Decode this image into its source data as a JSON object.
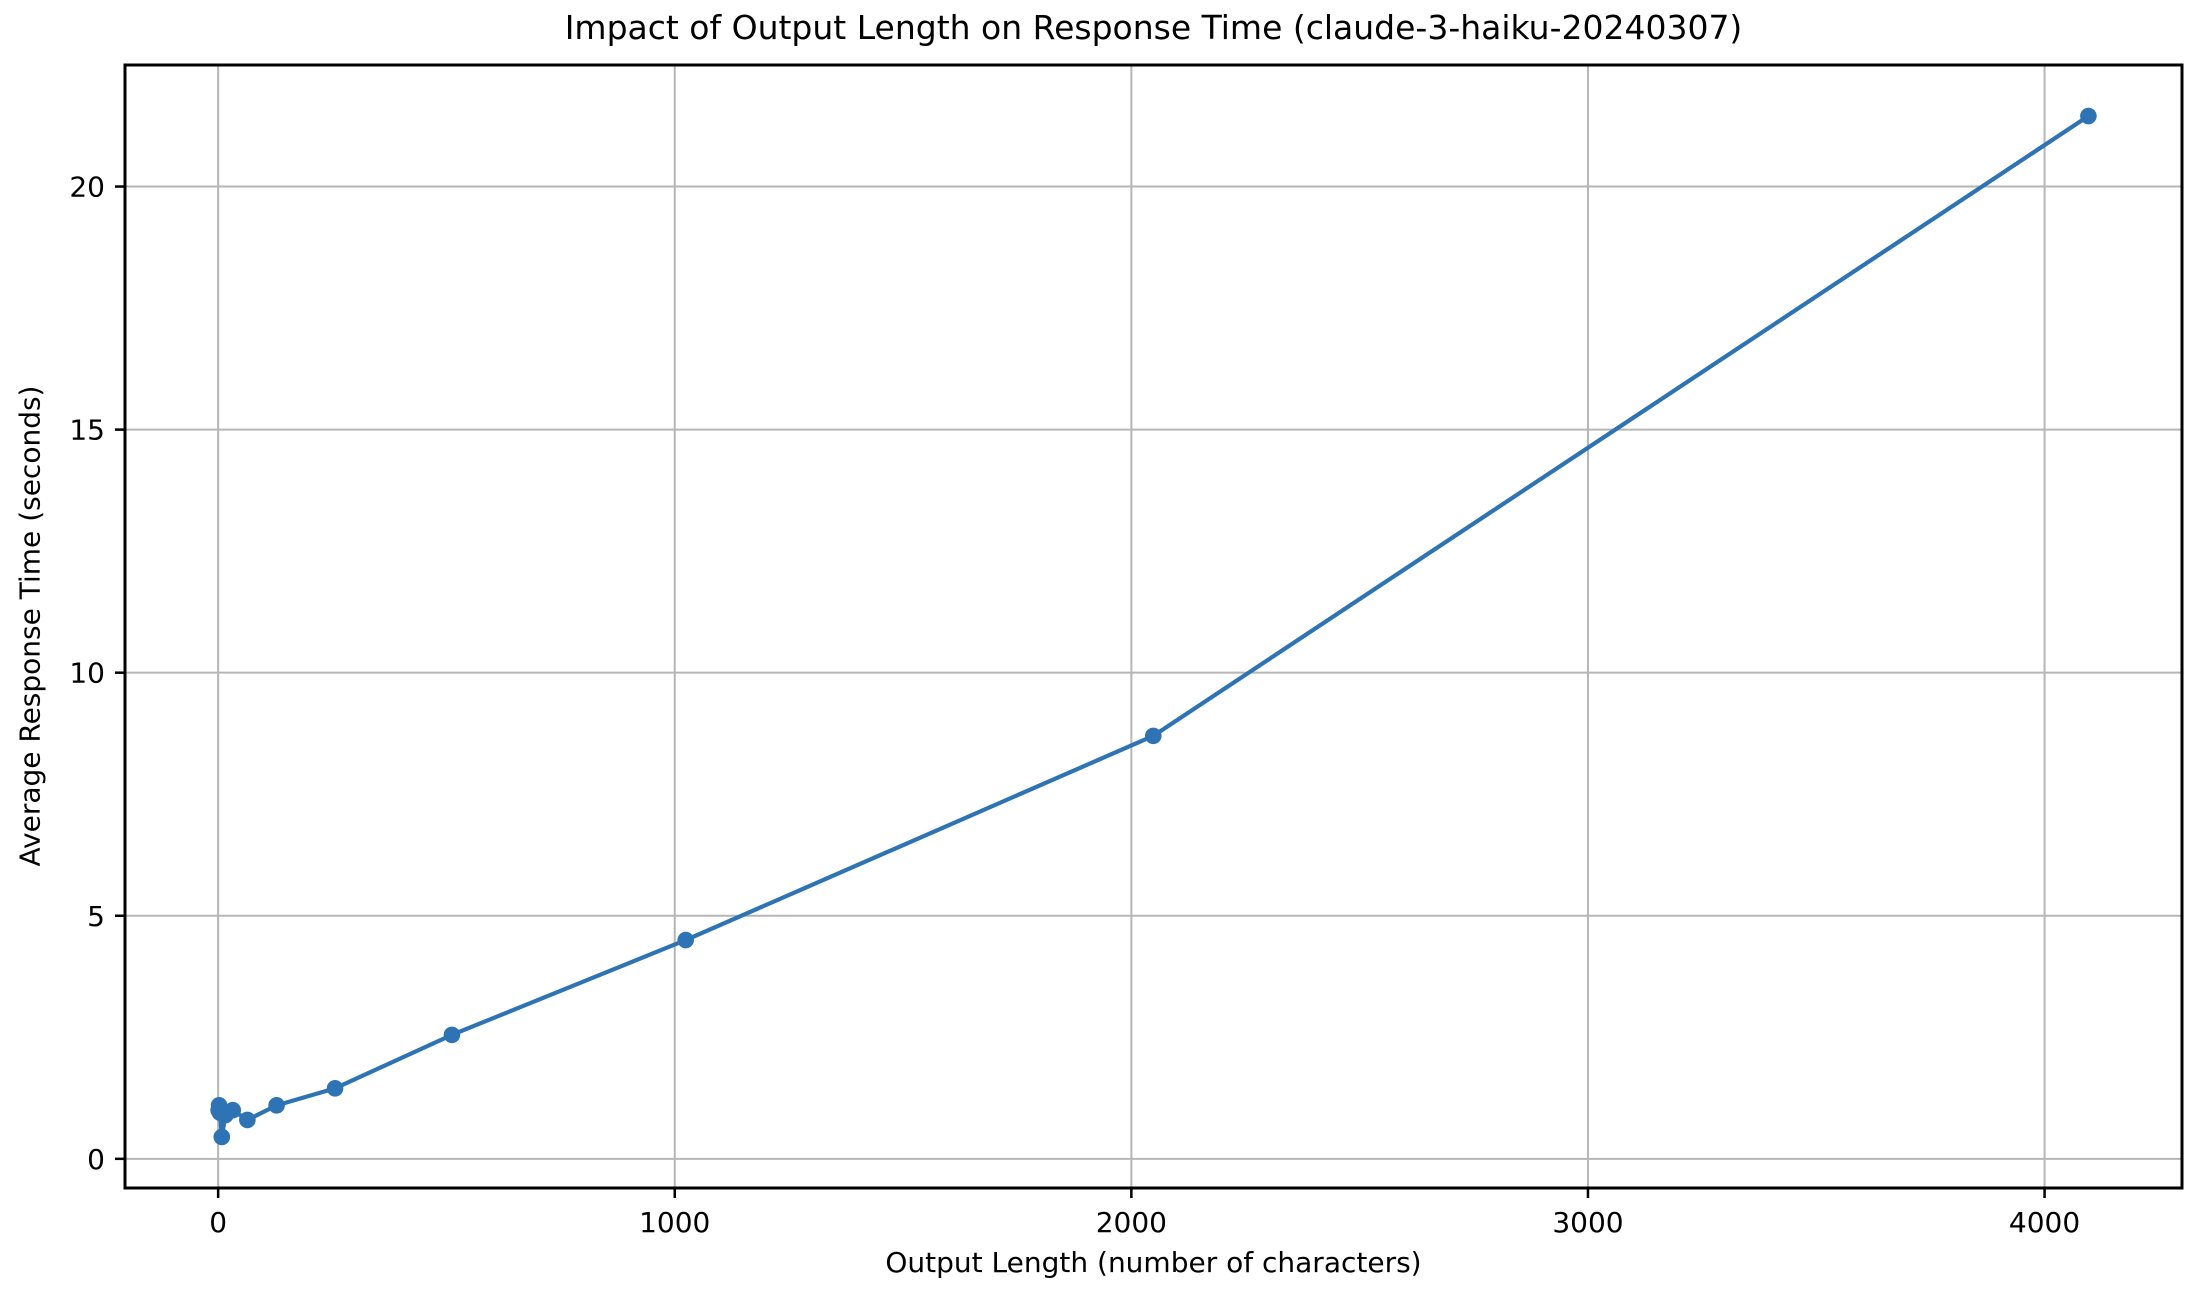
{
  "chart_data": {
    "type": "line",
    "title": "Impact of Output Length on Response Time (claude-3-haiku-20240307)",
    "xlabel": "Output Length (number of characters)",
    "ylabel": "Average Response Time (seconds)",
    "series": [
      {
        "name": "average-response-time",
        "color": "#2e73b3",
        "marker": "circle",
        "points": [
          [
            1,
            1.0
          ],
          [
            2,
            1.1
          ],
          [
            4,
            0.95
          ],
          [
            8,
            0.45
          ],
          [
            16,
            0.9
          ],
          [
            32,
            1.0
          ],
          [
            64,
            0.8
          ],
          [
            128,
            1.1
          ],
          [
            256,
            1.45
          ],
          [
            512,
            2.55
          ],
          [
            1024,
            4.5
          ],
          [
            2048,
            8.7
          ],
          [
            4096,
            21.45
          ]
        ]
      }
    ],
    "x_ticks": [
      0,
      1000,
      2000,
      3000,
      4000
    ],
    "y_ticks": [
      0,
      5,
      10,
      15,
      20
    ],
    "xlim": [
      -204,
      4301
    ],
    "ylim": [
      -0.6,
      22.5
    ],
    "grid": true,
    "legend": "none",
    "colors": {
      "line": "#2e73b3",
      "grid": "#b6b6b6",
      "spine": "#000000",
      "text": "#000000",
      "background": "#ffffff"
    }
  }
}
